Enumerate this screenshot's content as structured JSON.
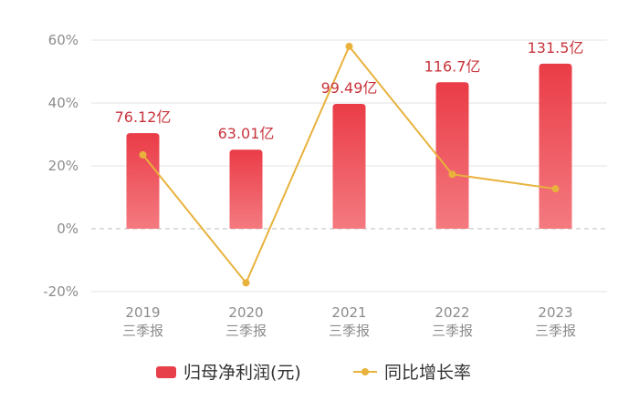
{
  "chart_data": {
    "type": "bar",
    "categories": [
      [
        "2019",
        "三季报"
      ],
      [
        "2020",
        "三季报"
      ],
      [
        "2021",
        "三季报"
      ],
      [
        "2022",
        "三季报"
      ],
      [
        "2023",
        "三季报"
      ]
    ],
    "series": [
      {
        "name": "归母净利润(元)",
        "type": "bar",
        "values": [
          76.12,
          63.01,
          99.49,
          116.7,
          131.5
        ],
        "data_labels": [
          "76.12亿",
          "63.01亿",
          "99.49亿",
          "116.7亿",
          "131.5亿"
        ],
        "color": "#e8404a"
      },
      {
        "name": "同比增长率",
        "type": "line",
        "values": [
          23.5,
          -17.2,
          58,
          17.3,
          12.7
        ],
        "color": "#e8b23c"
      }
    ],
    "yaxis": {
      "ticks": [
        "60%",
        "40%",
        "20%",
        "0%",
        "-20%"
      ],
      "tick_values": [
        60,
        40,
        20,
        0,
        -20
      ],
      "ylim": [
        -20,
        60
      ]
    },
    "bar_scale_max_value": 131.5,
    "bar_scale_max_percent": 52.5,
    "grid": true,
    "legend_position": "bottom",
    "title": "",
    "xlabel": "",
    "ylabel": ""
  }
}
